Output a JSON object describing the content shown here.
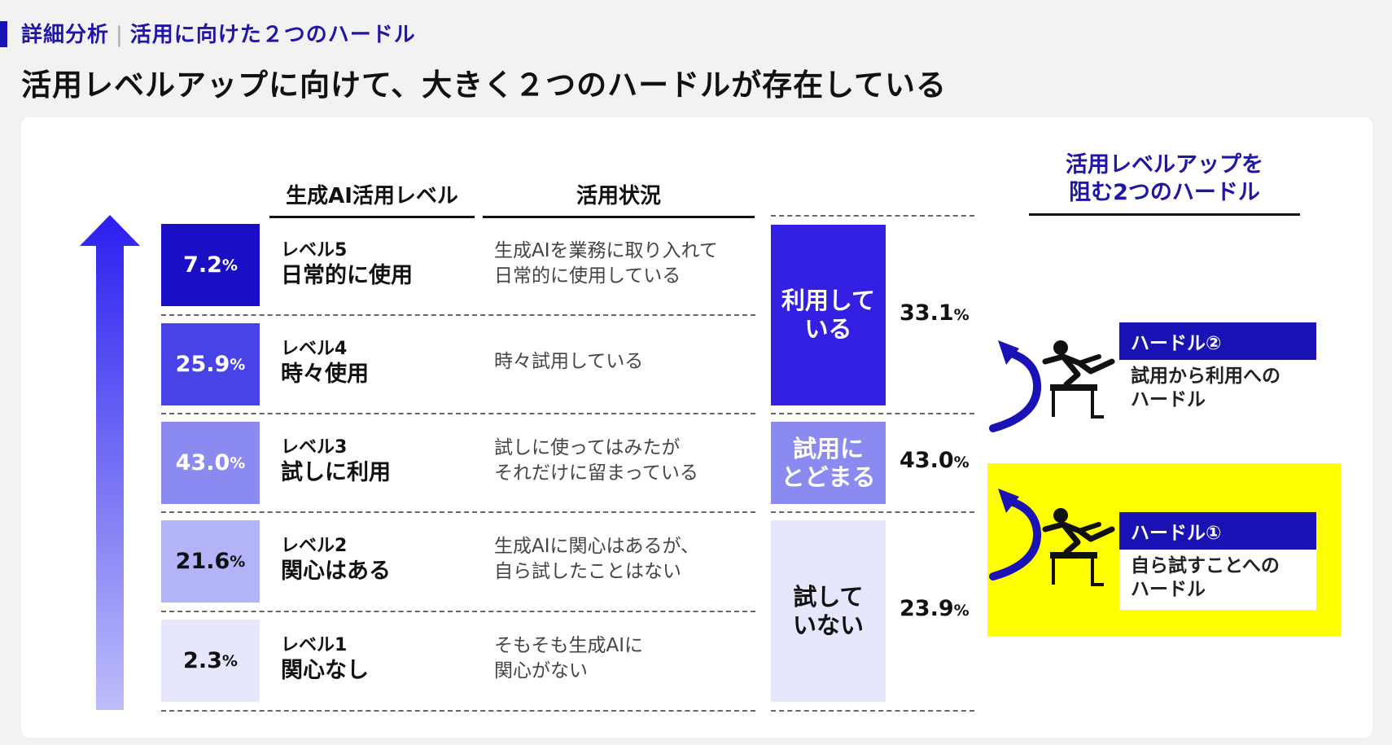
{
  "header": {
    "section": "詳細分析",
    "section_sub": "活用に向けた２つのハードル",
    "title": "活用レベルアップに向けて、大きく２つのハードルが存在している"
  },
  "columns": {
    "level": "生成AI活用レベル",
    "status": "活用状況"
  },
  "levels": [
    {
      "pct": "7.2",
      "unit": "%",
      "level": "レベル5",
      "name": "日常的に使用",
      "status_line1": "生成AIを業務に取り入れて",
      "status_line2": "日常的に使用している",
      "color": "#1a0fc4",
      "text_color": "#ffffff"
    },
    {
      "pct": "25.9",
      "unit": "%",
      "level": "レベル4",
      "name": "時々使用",
      "status_line1": "時々試用している",
      "status_line2": "",
      "color": "#4743e6",
      "text_color": "#ffffff"
    },
    {
      "pct": "43.0",
      "unit": "%",
      "level": "レベル3",
      "name": "試しに利用",
      "status_line1": "試しに使ってはみたが",
      "status_line2": "それだけに留まっている",
      "color": "#8b8af0",
      "text_color": "#ffffff"
    },
    {
      "pct": "21.6",
      "unit": "%",
      "level": "レベル2",
      "name": "関心はある",
      "status_line1": "生成AIに関心はあるが、",
      "status_line2": "自ら試したことはない",
      "color": "#b3b3f7",
      "text_color": "#111111"
    },
    {
      "pct": "2.3",
      "unit": "%",
      "level": "レベル1",
      "name": "関心なし",
      "status_line1": "そもそも生成AIに",
      "status_line2": "関心がない",
      "color": "#e6e6fc",
      "text_color": "#111111"
    }
  ],
  "groups": [
    {
      "line1": "利用して",
      "line2": "いる",
      "pct": "33.1",
      "unit": "%",
      "color": "#3320e2",
      "text_color": "#ffffff"
    },
    {
      "line1": "試用に",
      "line2": "とどまる",
      "pct": "43.0",
      "unit": "%",
      "color": "#8b8af0",
      "text_color": "#ffffff"
    },
    {
      "line1": "試して",
      "line2": "いない",
      "pct": "23.9",
      "unit": "%",
      "color": "#e6e6fc",
      "text_color": "#111111"
    }
  ],
  "hurdles": {
    "heading_line1": "活用レベルアップを",
    "heading_line2": "阻む2つのハードル",
    "items": [
      {
        "title": "ハードル②",
        "desc_line1": "試用から利用への",
        "desc_line2": "ハードル"
      },
      {
        "title": "ハードル①",
        "desc_line1": "自ら試すことへの",
        "desc_line2": "ハードル"
      }
    ],
    "highlight_color": "#ffff00",
    "accent_color": "#1a12b4"
  }
}
